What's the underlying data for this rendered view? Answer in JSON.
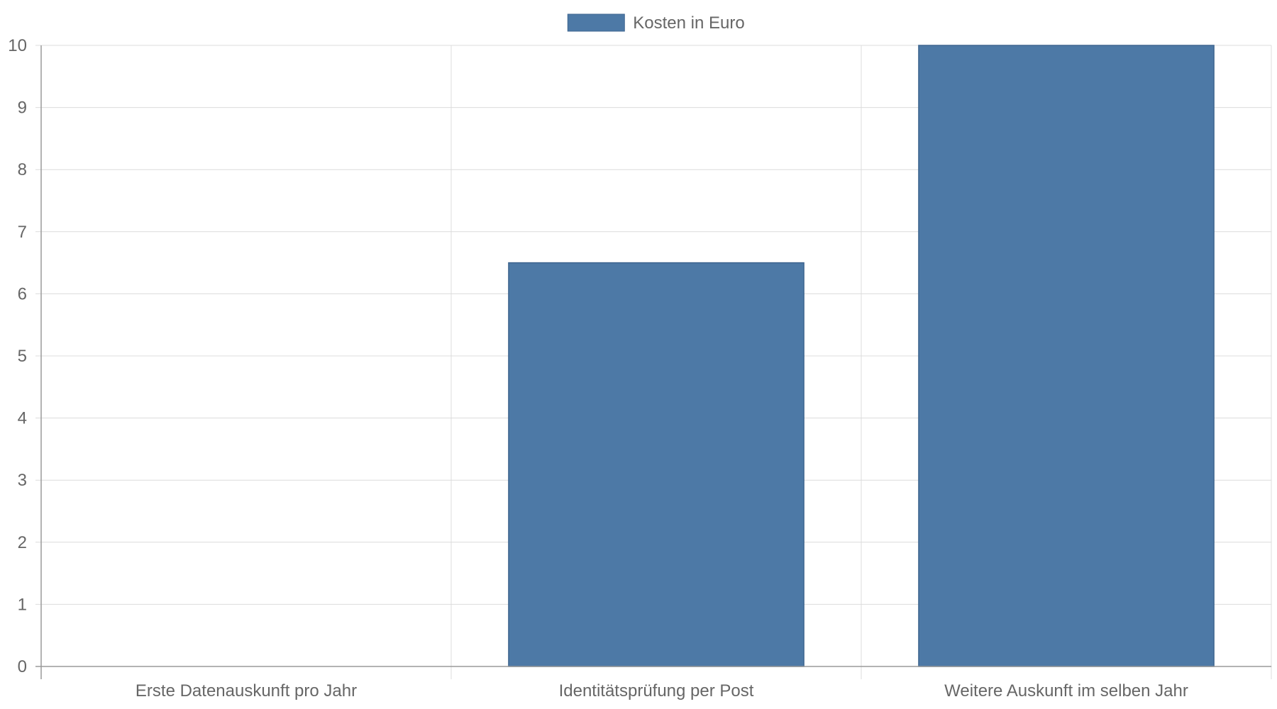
{
  "chart_data": {
    "type": "bar",
    "categories": [
      "Erste Datenauskunft pro Jahr",
      "Identitätsprüfung per Post",
      "Weitere Auskunft im selben Jahr"
    ],
    "series": [
      {
        "name": "Kosten in Euro",
        "values": [
          0,
          6.5,
          10
        ],
        "color": "#4d79a6"
      }
    ],
    "ylim": [
      0,
      10
    ],
    "yticks": [
      0,
      1,
      2,
      3,
      4,
      5,
      6,
      7,
      8,
      9,
      10
    ],
    "grid": true,
    "legend": "top-center",
    "title": "",
    "xlabel": "",
    "ylabel": ""
  }
}
